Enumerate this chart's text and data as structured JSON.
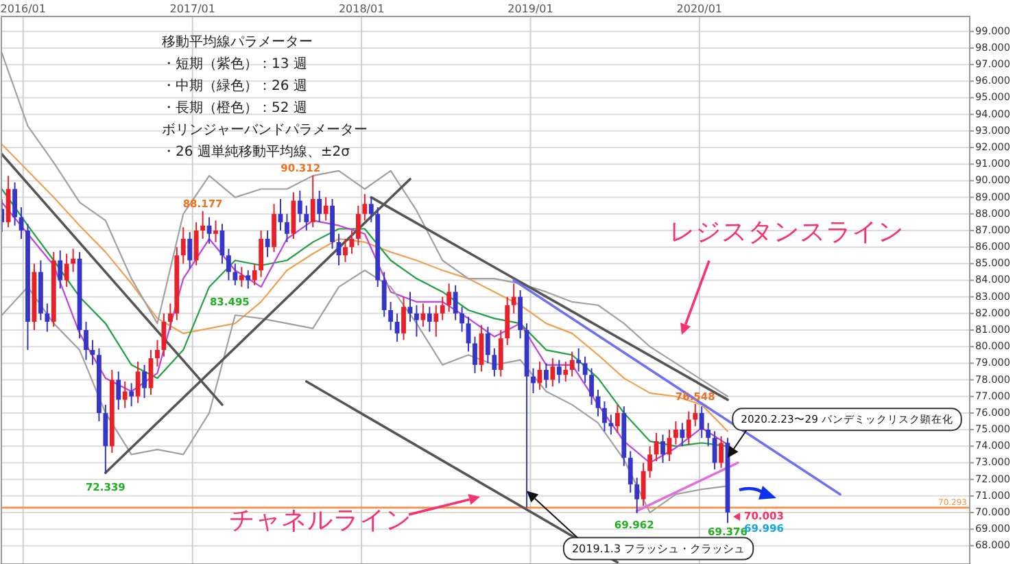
{
  "chart_data": {
    "type": "candlestick",
    "x": [
      "2015-11-16",
      "2015-11-30",
      "2015-12-14",
      "2015-12-28",
      "2016-01-11",
      "2016-01-25",
      "2016-02-08",
      "2016-02-22",
      "2016-03-07",
      "2016-03-21",
      "2016-04-04",
      "2016-04-18",
      "2016-05-02",
      "2016-05-16",
      "2016-05-30",
      "2016-06-13",
      "2016-06-27",
      "2016-07-11",
      "2016-07-25",
      "2016-08-08",
      "2016-08-22",
      "2016-09-05",
      "2016-09-19",
      "2016-10-03",
      "2016-10-17",
      "2016-10-31",
      "2016-11-14",
      "2016-11-28",
      "2016-12-12",
      "2016-12-26",
      "2017-01-09",
      "2017-01-23",
      "2017-02-06",
      "2017-02-20",
      "2017-03-06",
      "2017-03-20",
      "2017-04-03",
      "2017-04-17",
      "2017-05-01",
      "2017-05-15",
      "2017-05-29",
      "2017-06-12",
      "2017-06-26",
      "2017-07-10",
      "2017-07-24",
      "2017-08-07",
      "2017-08-21",
      "2017-09-04",
      "2017-09-18",
      "2017-10-02",
      "2017-10-16",
      "2017-10-30",
      "2017-11-13",
      "2017-11-27",
      "2017-12-11",
      "2017-12-25",
      "2018-01-08",
      "2018-01-22",
      "2018-02-05",
      "2018-02-19",
      "2018-03-05",
      "2018-03-19",
      "2018-04-02",
      "2018-04-16",
      "2018-04-30",
      "2018-05-14",
      "2018-05-28",
      "2018-06-11",
      "2018-06-25",
      "2018-07-09",
      "2018-07-23",
      "2018-08-06",
      "2018-08-20",
      "2018-09-03",
      "2018-09-17",
      "2018-10-01",
      "2018-10-15",
      "2018-10-29",
      "2018-11-12",
      "2018-11-26",
      "2018-12-10",
      "2018-12-24",
      "2019-01-07",
      "2019-01-21",
      "2019-02-04",
      "2019-02-18",
      "2019-03-04",
      "2019-03-18",
      "2019-04-01",
      "2019-04-15",
      "2019-04-29",
      "2019-05-13",
      "2019-05-27",
      "2019-06-10",
      "2019-06-24",
      "2019-07-08",
      "2019-07-22",
      "2019-08-05",
      "2019-08-19",
      "2019-09-02",
      "2019-09-16",
      "2019-09-30",
      "2019-10-14",
      "2019-10-28",
      "2019-11-11",
      "2019-11-25",
      "2019-12-09",
      "2019-12-23",
      "2020-01-06",
      "2020-01-20",
      "2020-02-03",
      "2020-02-17",
      "2020-03-02"
    ],
    "ohlc": [
      [
        88.3,
        88.9,
        86.9,
        87.5
      ],
      [
        87.5,
        90.3,
        87.2,
        89.5
      ],
      [
        89.5,
        89.9,
        87.3,
        87.8
      ],
      [
        87.8,
        88.4,
        86.5,
        87.0
      ],
      [
        87.0,
        87.4,
        79.8,
        81.5
      ],
      [
        81.5,
        85.0,
        81.0,
        84.5
      ],
      [
        84.5,
        85.2,
        81.6,
        82.0
      ],
      [
        82.0,
        82.6,
        80.9,
        81.5
      ],
      [
        81.5,
        85.7,
        81.2,
        85.2
      ],
      [
        85.2,
        85.8,
        83.5,
        84.0
      ],
      [
        84.0,
        85.6,
        83.6,
        85.0
      ],
      [
        85.0,
        85.9,
        84.5,
        85.3
      ],
      [
        85.3,
        85.7,
        80.5,
        81.0
      ],
      [
        81.0,
        81.5,
        79.2,
        79.8
      ],
      [
        79.8,
        80.4,
        78.9,
        79.5
      ],
      [
        79.5,
        79.9,
        75.5,
        76.0
      ],
      [
        76.0,
        76.5,
        72.339,
        74.0
      ],
      [
        74.0,
        78.6,
        73.6,
        78.0
      ],
      [
        78.0,
        78.5,
        76.2,
        76.8
      ],
      [
        76.8,
        77.9,
        76.3,
        77.3
      ],
      [
        77.3,
        77.8,
        76.4,
        77.0
      ],
      [
        77.0,
        79.1,
        76.6,
        78.5
      ],
      [
        78.5,
        78.9,
        76.9,
        77.5
      ],
      [
        77.5,
        79.8,
        77.1,
        79.3
      ],
      [
        79.3,
        80.4,
        78.8,
        79.8
      ],
      [
        79.8,
        82.0,
        79.4,
        81.5
      ],
      [
        81.5,
        82.6,
        81.0,
        82.0
      ],
      [
        82.0,
        86.0,
        81.6,
        85.5
      ],
      [
        85.5,
        87.2,
        85.0,
        86.5
      ],
      [
        86.5,
        86.9,
        84.7,
        85.2
      ],
      [
        85.2,
        87.5,
        84.9,
        87.0
      ],
      [
        87.0,
        88.177,
        86.5,
        87.3
      ],
      [
        87.3,
        87.8,
        86.2,
        86.8
      ],
      [
        86.8,
        87.6,
        86.3,
        87.0
      ],
      [
        87.0,
        87.4,
        85.0,
        85.5
      ],
      [
        85.5,
        85.9,
        84.0,
        84.5
      ],
      [
        84.5,
        85.0,
        83.7,
        84.0
      ],
      [
        84.0,
        84.8,
        83.6,
        84.3
      ],
      [
        84.3,
        84.6,
        83.495,
        84.0
      ],
      [
        84.0,
        85.0,
        83.7,
        84.6
      ],
      [
        84.6,
        87.0,
        84.2,
        86.5
      ],
      [
        86.5,
        87.0,
        85.4,
        86.0
      ],
      [
        86.0,
        88.6,
        85.7,
        88.0
      ],
      [
        88.0,
        88.9,
        87.0,
        87.5
      ],
      [
        87.5,
        88.0,
        86.3,
        86.8
      ],
      [
        86.8,
        89.3,
        86.5,
        88.8
      ],
      [
        88.8,
        89.4,
        87.5,
        88.0
      ],
      [
        88.0,
        88.5,
        87.0,
        87.5
      ],
      [
        87.5,
        90.312,
        87.2,
        88.9
      ],
      [
        88.9,
        89.4,
        87.5,
        88.0
      ],
      [
        88.0,
        89.0,
        87.6,
        88.5
      ],
      [
        88.5,
        88.9,
        85.9,
        86.3
      ],
      [
        86.3,
        86.8,
        84.9,
        85.5
      ],
      [
        85.5,
        86.5,
        85.1,
        86.0
      ],
      [
        86.0,
        87.0,
        85.6,
        86.5
      ],
      [
        86.5,
        88.5,
        86.1,
        88.0
      ],
      [
        88.0,
        89.2,
        87.6,
        88.6
      ],
      [
        88.6,
        89.0,
        87.5,
        88.0
      ],
      [
        88.0,
        88.4,
        83.6,
        84.0
      ],
      [
        84.0,
        84.5,
        81.8,
        82.2
      ],
      [
        82.2,
        82.7,
        81.0,
        81.5
      ],
      [
        81.5,
        82.0,
        80.3,
        80.8
      ],
      [
        80.8,
        83.0,
        80.4,
        82.4
      ],
      [
        82.4,
        83.3,
        81.5,
        82.0
      ],
      [
        82.0,
        82.5,
        80.6,
        81.6
      ],
      [
        81.6,
        82.6,
        81.2,
        82.0
      ],
      [
        82.0,
        82.4,
        80.9,
        81.5
      ],
      [
        81.5,
        82.5,
        80.6,
        82.0
      ],
      [
        82.0,
        83.0,
        81.6,
        82.5
      ],
      [
        82.5,
        83.8,
        82.1,
        83.3
      ],
      [
        83.3,
        83.7,
        81.6,
        82.0
      ],
      [
        82.0,
        82.4,
        80.9,
        81.4
      ],
      [
        81.4,
        81.8,
        79.7,
        80.2
      ],
      [
        80.2,
        80.6,
        78.4,
        78.9
      ],
      [
        78.9,
        81.3,
        78.5,
        80.8
      ],
      [
        80.8,
        81.2,
        79.0,
        79.5
      ],
      [
        79.5,
        79.9,
        78.2,
        78.6
      ],
      [
        78.6,
        81.0,
        78.2,
        80.5
      ],
      [
        80.5,
        83.0,
        80.1,
        82.5
      ],
      [
        82.5,
        83.8,
        82.0,
        83.0
      ],
      [
        83.0,
        83.4,
        80.5,
        81.0
      ],
      [
        81.0,
        81.4,
        70.3,
        78.2
      ],
      [
        78.2,
        78.7,
        77.2,
        77.8
      ],
      [
        77.8,
        79.1,
        77.4,
        78.6
      ],
      [
        78.6,
        79.0,
        77.5,
        78.0
      ],
      [
        78.0,
        79.3,
        77.6,
        78.8
      ],
      [
        78.8,
        79.2,
        77.8,
        78.3
      ],
      [
        78.3,
        79.1,
        77.9,
        78.6
      ],
      [
        78.6,
        79.7,
        78.2,
        79.2
      ],
      [
        79.2,
        79.9,
        78.5,
        79.0
      ],
      [
        79.0,
        79.4,
        77.8,
        78.3
      ],
      [
        78.3,
        78.7,
        76.5,
        77.0
      ],
      [
        77.0,
        77.4,
        75.8,
        76.3
      ],
      [
        76.3,
        76.7,
        74.9,
        75.4
      ],
      [
        75.4,
        75.9,
        74.7,
        75.2
      ],
      [
        75.2,
        76.5,
        74.8,
        76.0
      ],
      [
        76.0,
        76.4,
        72.8,
        73.3
      ],
      [
        73.3,
        73.7,
        71.2,
        71.7
      ],
      [
        71.7,
        72.1,
        69.962,
        70.8
      ],
      [
        70.8,
        73.0,
        70.4,
        72.5
      ],
      [
        72.5,
        74.0,
        72.1,
        73.5
      ],
      [
        73.5,
        74.8,
        73.1,
        74.3
      ],
      [
        74.3,
        74.7,
        73.0,
        73.5
      ],
      [
        73.5,
        75.0,
        73.1,
        74.5
      ],
      [
        74.5,
        75.5,
        74.1,
        75.0
      ],
      [
        75.0,
        75.4,
        74.0,
        74.5
      ],
      [
        74.5,
        76.1,
        74.1,
        75.6
      ],
      [
        75.6,
        76.548,
        75.2,
        76.0
      ],
      [
        76.0,
        76.4,
        74.5,
        75.0
      ],
      [
        75.0,
        75.4,
        74.0,
        74.5
      ],
      [
        74.5,
        74.9,
        72.6,
        73.0
      ],
      [
        73.0,
        74.6,
        72.7,
        74.2
      ],
      [
        74.2,
        74.5,
        69.376,
        70.003
      ]
    ],
    "series": [
      {
        "type": "line",
        "color": "#f0a050",
        "x": [
          "2015-11-16",
          "2016-01-11",
          "2016-03-07",
          "2016-05-02",
          "2016-06-27",
          "2016-08-22",
          "2016-10-17",
          "2016-12-12",
          "2017-02-06",
          "2017-04-03",
          "2017-05-29",
          "2017-07-24",
          "2017-09-18",
          "2017-11-13",
          "2018-01-08",
          "2018-03-05",
          "2018-04-30",
          "2018-06-25",
          "2018-08-20",
          "2018-10-15",
          "2018-12-10",
          "2019-02-04",
          "2019-04-01",
          "2019-05-27",
          "2019-07-22",
          "2019-09-16",
          "2019-11-11",
          "2020-01-06",
          "2020-03-02"
        ],
        "values": [
          92.2,
          90.6,
          89.0,
          87.3,
          85.7,
          83.8,
          81.7,
          80.8,
          81.1,
          81.4,
          82.7,
          84.6,
          85.6,
          86.5,
          86.3,
          85.7,
          85.2,
          84.6,
          84.1,
          83.3,
          82.5,
          81.4,
          80.8,
          79.5,
          78.1,
          77.2,
          77.0,
          76.5,
          74.9
        ]
      },
      {
        "type": "line",
        "color": "#20a040",
        "x": [
          "2015-11-16",
          "2016-01-11",
          "2016-03-07",
          "2016-05-02",
          "2016-06-27",
          "2016-08-22",
          "2016-10-17",
          "2016-12-12",
          "2017-02-06",
          "2017-04-03",
          "2017-05-29",
          "2017-07-24",
          "2017-09-18",
          "2017-11-13",
          "2018-01-08",
          "2018-03-05",
          "2018-04-30",
          "2018-06-25",
          "2018-08-20",
          "2018-10-15",
          "2018-12-10",
          "2019-02-04",
          "2019-04-01",
          "2019-05-27",
          "2019-07-22",
          "2019-09-16",
          "2019-11-11",
          "2020-01-06",
          "2020-03-02"
        ],
        "values": [
          89.5,
          87.3,
          85.2,
          83.0,
          81.4,
          78.9,
          78.1,
          79.8,
          83.6,
          85.2,
          84.9,
          85.2,
          86.3,
          87.1,
          87.1,
          85.2,
          84.1,
          83.3,
          82.2,
          81.7,
          81.4,
          79.8,
          79.5,
          78.1,
          76.0,
          74.3,
          74.0,
          74.2,
          74.0
        ]
      },
      {
        "type": "line",
        "color": "#c040e0",
        "x": [
          "2015-11-16",
          "2016-01-11",
          "2016-03-07",
          "2016-05-02",
          "2016-06-27",
          "2016-08-22",
          "2016-10-17",
          "2016-12-12",
          "2017-02-06",
          "2017-04-03",
          "2017-05-29",
          "2017-07-24",
          "2017-09-18",
          "2017-11-13",
          "2018-01-08",
          "2018-03-05",
          "2018-04-30",
          "2018-06-25",
          "2018-08-20",
          "2018-10-15",
          "2018-12-10",
          "2019-02-04",
          "2019-04-01",
          "2019-05-27",
          "2019-07-22",
          "2019-09-16",
          "2019-11-11",
          "2020-01-06",
          "2020-03-02"
        ],
        "values": [
          88.7,
          86.8,
          84.9,
          80.8,
          78.1,
          77.3,
          78.4,
          84.1,
          86.5,
          84.6,
          83.6,
          86.5,
          87.6,
          87.3,
          86.8,
          83.3,
          82.7,
          82.7,
          81.7,
          80.6,
          81.4,
          78.9,
          78.9,
          76.5,
          74.3,
          73.0,
          73.9,
          75.1,
          74.1
        ]
      },
      {
        "type": "line",
        "color": "#a0a0a0",
        "x": [
          "2015-11-16",
          "2016-01-11",
          "2016-03-07",
          "2016-05-02",
          "2016-06-27",
          "2016-08-22",
          "2016-10-17",
          "2016-12-12",
          "2017-02-06",
          "2017-04-03",
          "2017-05-29",
          "2017-07-24",
          "2017-09-18",
          "2017-11-13",
          "2018-01-08",
          "2018-03-05",
          "2018-04-30",
          "2018-06-25",
          "2018-08-20",
          "2018-10-15",
          "2018-12-10",
          "2019-02-04",
          "2019-04-01",
          "2019-05-27",
          "2019-07-22",
          "2019-09-16",
          "2019-11-11",
          "2020-01-06",
          "2020-03-02"
        ],
        "values": [
          97.7,
          93.3,
          91.1,
          88.7,
          87.6,
          84.1,
          81.4,
          88.0,
          90.3,
          89.0,
          89.5,
          89.5,
          90.3,
          90.6,
          89.5,
          90.6,
          88.2,
          85.2,
          84.1,
          84.1,
          83.8,
          83.3,
          82.7,
          82.5,
          81.4,
          80.0,
          79.0,
          78.0,
          77.0
        ]
      },
      {
        "type": "line",
        "color": "#a0a0a0",
        "x": [
          "2015-11-16",
          "2016-01-11",
          "2016-03-07",
          "2016-05-02",
          "2016-06-27",
          "2016-08-22",
          "2016-10-17",
          "2016-12-12",
          "2017-02-06",
          "2017-04-03",
          "2017-05-29",
          "2017-07-24",
          "2017-09-18",
          "2017-11-13",
          "2018-01-08",
          "2018-03-05",
          "2018-04-30",
          "2018-06-25",
          "2018-08-20",
          "2018-10-15",
          "2018-12-10",
          "2019-02-04",
          "2019-04-01",
          "2019-05-27",
          "2019-07-22",
          "2019-09-16",
          "2019-11-11",
          "2020-01-06",
          "2020-03-02"
        ],
        "values": [
          81.9,
          83.6,
          81.4,
          79.8,
          76.0,
          73.5,
          73.8,
          73.5,
          76.0,
          81.9,
          81.7,
          81.4,
          81.1,
          83.6,
          84.6,
          83.6,
          81.4,
          78.9,
          79.5,
          78.9,
          79.2,
          77.3,
          76.5,
          75.4,
          73.2,
          70.0,
          71.1,
          71.4,
          71.6
        ]
      },
      {
        "type": "line",
        "color": "#555555",
        "x": [
          "2015-11-16",
          "2017-03-06"
        ],
        "values": [
          91.6,
          76.5
        ]
      },
      {
        "type": "line",
        "color": "#555555",
        "x": [
          "2016-06-27",
          "2018-04-16"
        ],
        "values": [
          72.4,
          90.1
        ]
      },
      {
        "type": "line",
        "color": "#555555",
        "x": [
          "2018-01-22",
          "2020-03-02"
        ],
        "values": [
          89.0,
          76.8
        ]
      },
      {
        "type": "line",
        "color": "#555555",
        "x": [
          "2017-09-04",
          "2019-07-08"
        ],
        "values": [
          77.9,
          67.0
        ]
      },
      {
        "type": "line",
        "color": "#7070f0",
        "x": [
          "2018-11-26",
          "2020-10-31"
        ],
        "values": [
          84.0,
          71.1
        ]
      },
      {
        "type": "line",
        "color": "#e070e0",
        "x": [
          "2019-08-19",
          "2020-03-24"
        ],
        "values": [
          70.1,
          73.0
        ]
      }
    ],
    "ref_lines": [
      {
        "axis": "y",
        "value": 70.293,
        "label": "70.293",
        "color": "#f5904a"
      }
    ],
    "annotations": [
      "移動平均線パラメーター",
      "・短期（紫色）：13 週",
      "・中期（緑色）：26 週",
      "・長期（橙色）：52 週",
      "ボリンジャーバンドパラメーター",
      "・26 週単純移動平均線、±2σ",
      "レジスタンスライン",
      "チャネルライン",
      {
        "text": "2020.2.23〜29 パンデミックリスク顕在化",
        "x": "2020-03-02",
        "y": 73.3
      },
      {
        "text": "2019.1.3 フラッシュ・クラッシュ",
        "x": "2018-12-24",
        "y": 71.3
      },
      {
        "text": "88.177",
        "x": "2017-01-23",
        "y": 88.177
      },
      {
        "text": "90.312",
        "x": "2017-09-18",
        "y": 90.312
      },
      {
        "text": "83.495",
        "x": "2017-04-03",
        "y": 83.495
      },
      {
        "text": "72.339",
        "x": "2016-06-27",
        "y": 72.339
      },
      {
        "text": "69.962",
        "x": "2019-08-19",
        "y": 69.962
      },
      {
        "text": "76.548",
        "x": "2019-12-23",
        "y": 76.548
      },
      {
        "text": "69.376",
        "x": "2020-03-02",
        "y": 69.376
      },
      {
        "text": "70.003",
        "x": "2020-03-02",
        "y": 70.003
      },
      {
        "text": "69.996",
        "x": "2020-03-02",
        "y": 69.996
      }
    ],
    "xlim": [
      "2015-11-15",
      "2021-08-07"
    ],
    "xticks": [
      {
        "value": "2016-01-01",
        "label": "2016/01"
      },
      {
        "value": "2017-01-01",
        "label": "2017/01"
      },
      {
        "value": "2018-01-01",
        "label": "2018/01"
      },
      {
        "value": "2019-01-01",
        "label": "2019/01"
      },
      {
        "value": "2020-01-01",
        "label": "2020/01"
      }
    ],
    "ylim": [
      66.9,
      99.9
    ],
    "yticks": [
      {
        "value": 68,
        "label": "68.000"
      },
      {
        "value": 69,
        "label": "69.000"
      },
      {
        "value": 70,
        "label": "70.000"
      },
      {
        "value": 71,
        "label": "71.000"
      },
      {
        "value": 72,
        "label": "72.000"
      },
      {
        "value": 73,
        "label": "73.000"
      },
      {
        "value": 74,
        "label": "74.000"
      },
      {
        "value": 75,
        "label": "75.000"
      },
      {
        "value": 76,
        "label": "76.000"
      },
      {
        "value": 77,
        "label": "77.000"
      },
      {
        "value": 78,
        "label": "78.000"
      },
      {
        "value": 79,
        "label": "79.000"
      },
      {
        "value": 80,
        "label": "80.000"
      },
      {
        "value": 81,
        "label": "81.000"
      },
      {
        "value": 82,
        "label": "82.000"
      },
      {
        "value": 83,
        "label": "83.000"
      },
      {
        "value": 84,
        "label": "84.000"
      },
      {
        "value": 85,
        "label": "85.000"
      },
      {
        "value": 86,
        "label": "86.000"
      },
      {
        "value": 87,
        "label": "87.000"
      },
      {
        "value": 88,
        "label": "88.000"
      },
      {
        "value": 89,
        "label": "89.000"
      },
      {
        "value": 90,
        "label": "90.000"
      },
      {
        "value": 91,
        "label": "91.000"
      },
      {
        "value": 92,
        "label": "92.000"
      },
      {
        "value": 93,
        "label": "93.000"
      },
      {
        "value": 94,
        "label": "94.000"
      },
      {
        "value": 95,
        "label": "95.000"
      },
      {
        "value": 96,
        "label": "96.000"
      },
      {
        "value": 97,
        "label": "97.000"
      },
      {
        "value": 98,
        "label": "98.000"
      },
      {
        "value": 99,
        "label": "99.000"
      }
    ],
    "grid": true
  }
}
